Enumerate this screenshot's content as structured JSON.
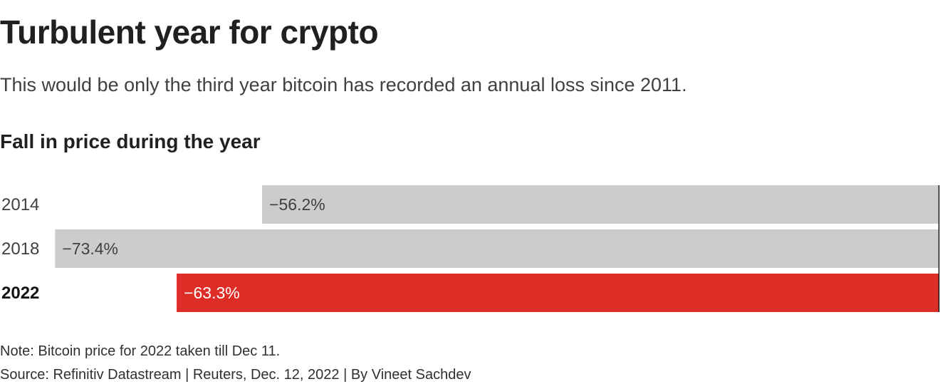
{
  "title": "Turbulent year for crypto",
  "subtitle": "This would be only the third year bitcoin has recorded an annual loss since 2011.",
  "chart_heading": "Fall in price during the year",
  "note": "Note: Bitcoin price for 2022 taken till Dec 11.",
  "source": "Source: Refinitiv Datastream | Reuters, Dec. 12, 2022 | By Vineet Sachdev",
  "chart_data": {
    "type": "bar",
    "orientation": "horizontal",
    "title": "Fall in price during the year",
    "categories": [
      "2014",
      "2018",
      "2022"
    ],
    "values": [
      -56.2,
      -73.4,
      -63.3
    ],
    "labels": [
      "−56.2%",
      "−73.4%",
      "−63.3%"
    ],
    "highlight_category": "2022",
    "colors": {
      "default_bar": "#cccccc",
      "highlight_bar": "#de2d26",
      "default_label": "#404040",
      "highlight_label": "#ffffff",
      "axis": "#1a1a1a"
    },
    "xlim": [
      -74.9,
      0
    ],
    "baseline": "right",
    "grid": false,
    "legend": "none"
  }
}
